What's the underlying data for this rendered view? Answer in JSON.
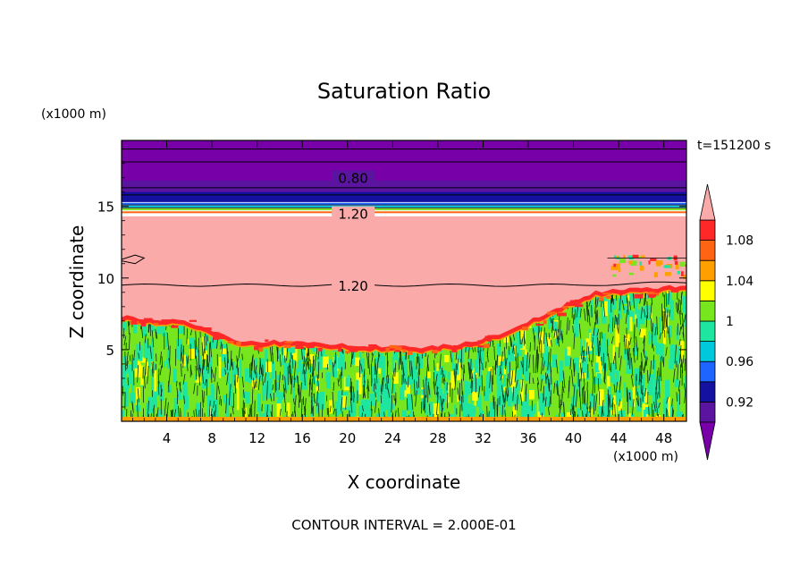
{
  "chart_data": {
    "type": "heatmap",
    "title": "Saturation Ratio",
    "xlabel": "X coordinate",
    "ylabel": "Z coordinate",
    "x_unit": "(x1000 m)",
    "y_unit": "(x1000 m)",
    "time_label": "t=151200 s",
    "footnote": "CONTOUR INTERVAL = 2.000E-01",
    "xlim": [
      0,
      50
    ],
    "ylim": [
      0,
      19.6
    ],
    "x_ticks": [
      4,
      8,
      12,
      16,
      20,
      24,
      28,
      32,
      36,
      40,
      44,
      48
    ],
    "y_ticks": [
      5,
      10,
      15
    ],
    "colorbar": {
      "levels": [
        0.9,
        0.92,
        0.94,
        0.96,
        0.98,
        1.0,
        1.02,
        1.04,
        1.06,
        1.08,
        1.1
      ],
      "tick_labels": [
        "0.92",
        "0.96",
        "1",
        "1.04",
        "1.08"
      ],
      "tick_values": [
        0.92,
        0.96,
        1.0,
        1.04,
        1.08
      ],
      "colors": [
        "#5a14a0",
        "#1410a0",
        "#1e64ff",
        "#00c8dc",
        "#1ee6a0",
        "#78e61e",
        "#ffff00",
        "#ffa000",
        "#ff6414",
        "#ff2828"
      ],
      "under_color": "#7800a8",
      "over_color": "#fbaaaa"
    },
    "contour_labels": [
      {
        "text": "0.80",
        "value": 0.8,
        "z": 17.0
      },
      {
        "text": "1.20",
        "value": 1.2,
        "z": 14.5
      },
      {
        "text": "1.20",
        "value": 1.2,
        "z": 9.5
      }
    ],
    "layers": [
      {
        "range_z": [
          17.0,
          19.6
        ],
        "value_range": "< 0.8"
      },
      {
        "range_z": [
          15.0,
          17.0
        ],
        "value_range": "0.8 - 0.92"
      },
      {
        "range_z": [
          14.3,
          15.0
        ],
        "value_range": "0.92 - 1.1"
      },
      {
        "range_z": [
          7.0,
          14.3
        ],
        "value_range": "> 1.1"
      },
      {
        "range_z": [
          0.0,
          7.0
        ],
        "value_range": "0.96 - 1.04"
      }
    ],
    "pink_bottom_profile": {
      "x": [
        0,
        2,
        4,
        6,
        8,
        10,
        14,
        18,
        22,
        26,
        30,
        34,
        36,
        38,
        40,
        42,
        44,
        46,
        48,
        50
      ],
      "z": [
        7.2,
        7.0,
        6.9,
        6.8,
        6.2,
        5.5,
        5.4,
        5.3,
        5.1,
        5.0,
        5.2,
        6.1,
        6.8,
        7.5,
        8.3,
        8.9,
        9.0,
        9.1,
        9.2,
        9.3
      ]
    }
  }
}
